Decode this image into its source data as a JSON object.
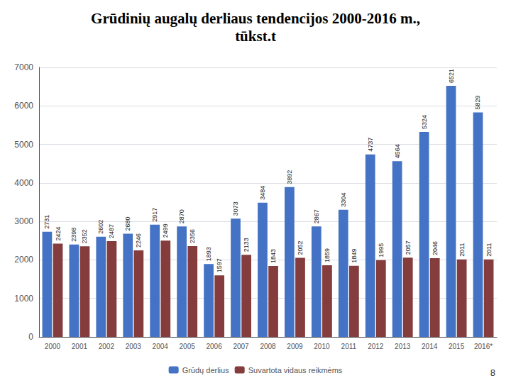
{
  "chart_data": {
    "type": "bar",
    "title": "Grūdinių augalų derliaus tendencijos 2000-2016 m.,",
    "subtitle": "tūkst.t",
    "categories": [
      "2000",
      "2001",
      "2002",
      "2003",
      "2004",
      "2005",
      "2006",
      "2007",
      "2008",
      "2009",
      "2010",
      "2011",
      "2012",
      "2013",
      "2014",
      "2015",
      "2016*"
    ],
    "series": [
      {
        "name": "Grūdų derlius",
        "color": "#4472C4",
        "values": [
          2731,
          2398,
          2602,
          2680,
          2917,
          2870,
          1893,
          3073,
          3484,
          3892,
          2867,
          3304,
          4737,
          4564,
          5324,
          6521,
          5829
        ]
      },
      {
        "name": "Suvartota vidaus reikmėms",
        "color": "#843C3C",
        "values": [
          2424,
          2352,
          2487,
          2246,
          2499,
          2356,
          1597,
          2133,
          1843,
          2052,
          1859,
          1849,
          1995,
          2057,
          2046,
          2011,
          2011
        ]
      }
    ],
    "ylim": [
      0,
      7000
    ],
    "yticks": [
      0,
      1000,
      2000,
      3000,
      4000,
      5000,
      6000,
      7000
    ],
    "grid": true,
    "legend": "bottom",
    "data_labels": true,
    "annotations": [
      "8"
    ]
  }
}
